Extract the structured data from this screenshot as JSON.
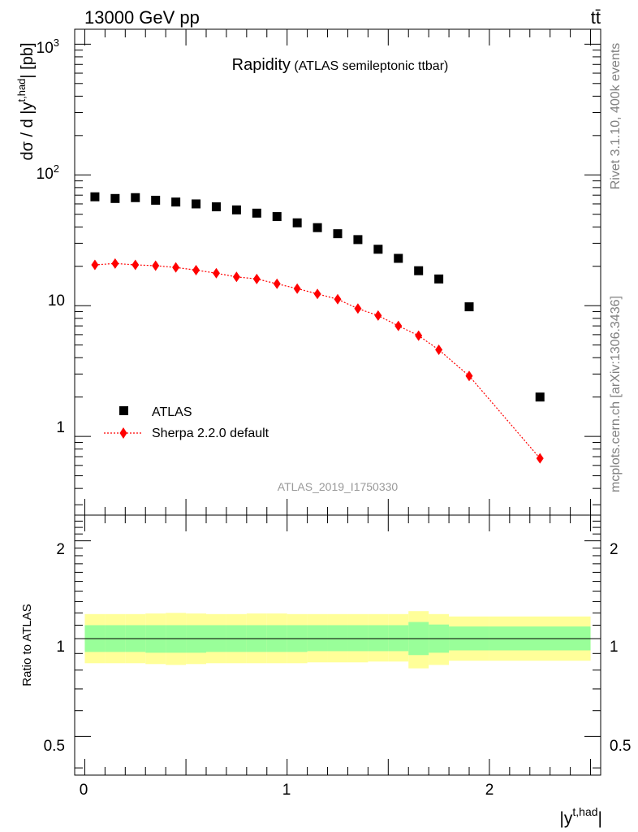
{
  "header": {
    "left": "13000 GeV pp",
    "right": "tt̄"
  },
  "side_labels": {
    "rivet": "Rivet 3.1.10,  400k events",
    "mcplots": "mcplots.cern.ch [arXiv:1306.3436]"
  },
  "main_plot": {
    "title_main": "Rapidity",
    "title_sub": "(ATLAS semileptonic ttbar)",
    "analysis_id": "ATLAS_2019_I1750330",
    "ylabel_prefix": "dσ / d |y",
    "ylabel_sup": "t,had",
    "ylabel_suffix": "| [pb]",
    "legend": {
      "atlas": "ATLAS",
      "sherpa": "Sherpa 2.2.0 default"
    },
    "ytick_labels": [
      {
        "base": "1",
        "exp": ""
      },
      {
        "base": "10",
        "exp": ""
      },
      {
        "base": "10",
        "exp": "2"
      },
      {
        "base": "10",
        "exp": "3"
      }
    ]
  },
  "ratio_plot": {
    "ylabel": "Ratio to ATLAS",
    "ytick_labels": [
      "0.5",
      "1",
      "2"
    ],
    "ytick_labels_right": [
      "0.5",
      "1",
      "2"
    ]
  },
  "xaxis": {
    "tick_labels": [
      "0",
      "1",
      "2"
    ],
    "label_base": "|y",
    "label_sup": "t,had",
    "label_end": "|"
  },
  "colors": {
    "data": "#000000",
    "mc": "#ff0000",
    "band_inner": "#99ff99",
    "band_outer": "#ffff99"
  },
  "chart_data": [
    {
      "type": "scatter",
      "title": "Rapidity (ATLAS semileptonic ttbar)",
      "xlabel": "|y^t,had|",
      "ylabel": "dσ / d |y^t,had| [pb]",
      "xlim": [
        -0.05,
        2.55
      ],
      "ylim": [
        0.25,
        1300
      ],
      "log_y": true,
      "legend_position": "lower-left",
      "series": [
        {
          "name": "ATLAS",
          "marker": "square",
          "x": [
            0.05,
            0.15,
            0.25,
            0.35,
            0.45,
            0.55,
            0.65,
            0.75,
            0.85,
            0.95,
            1.05,
            1.15,
            1.25,
            1.35,
            1.45,
            1.55,
            1.65,
            1.75,
            1.9,
            2.25
          ],
          "y": [
            68,
            66,
            67,
            64,
            62,
            60,
            57,
            54,
            51,
            48,
            43,
            39.5,
            35.5,
            32,
            27,
            23,
            18.5,
            16,
            9.8,
            2.0
          ]
        },
        {
          "name": "Sherpa 2.2.0 default",
          "marker": "diamond",
          "line": "dotted",
          "x": [
            0.05,
            0.15,
            0.25,
            0.35,
            0.45,
            0.55,
            0.65,
            0.75,
            0.85,
            0.95,
            1.05,
            1.15,
            1.25,
            1.35,
            1.45,
            1.55,
            1.65,
            1.75,
            1.9,
            2.25
          ],
          "y": [
            20.5,
            21,
            20.5,
            20.2,
            19.6,
            18.7,
            17.7,
            16.6,
            16,
            14.7,
            13.5,
            12.3,
            11.2,
            9.5,
            8.4,
            7.0,
            5.9,
            4.6,
            2.9,
            0.68
          ]
        }
      ]
    },
    {
      "type": "area",
      "xlabel": "|y^t,had|",
      "ylabel": "Ratio to ATLAS",
      "xlim": [
        -0.05,
        2.55
      ],
      "ylim": [
        0.38,
        2.4
      ],
      "log_y": true,
      "reference_line": 1,
      "bins": [
        [
          0,
          0.1
        ],
        [
          0.1,
          0.2
        ],
        [
          0.2,
          0.3
        ],
        [
          0.3,
          0.4
        ],
        [
          0.4,
          0.5
        ],
        [
          0.5,
          0.6
        ],
        [
          0.6,
          0.7
        ],
        [
          0.7,
          0.8
        ],
        [
          0.8,
          0.9
        ],
        [
          0.9,
          1.0
        ],
        [
          1.0,
          1.1
        ],
        [
          1.1,
          1.2
        ],
        [
          1.2,
          1.3
        ],
        [
          1.3,
          1.4
        ],
        [
          1.4,
          1.5
        ],
        [
          1.5,
          1.6
        ],
        [
          1.6,
          1.7
        ],
        [
          1.7,
          1.8
        ],
        [
          1.8,
          2.0
        ],
        [
          2.0,
          2.5
        ]
      ],
      "series": [
        {
          "name": "",
          "lo": [
            0.84,
            0.84,
            0.84,
            0.835,
            0.83,
            0.835,
            0.84,
            0.84,
            0.84,
            0.84,
            0.84,
            0.845,
            0.845,
            0.845,
            0.85,
            0.85,
            0.81,
            0.83,
            0.855,
            0.855
          ],
          "hi": [
            1.19,
            1.19,
            1.19,
            1.195,
            1.2,
            1.195,
            1.19,
            1.19,
            1.195,
            1.195,
            1.19,
            1.19,
            1.19,
            1.19,
            1.19,
            1.19,
            1.215,
            1.19,
            1.17,
            1.17
          ]
        },
        {
          "name": "",
          "lo": [
            0.91,
            0.91,
            0.91,
            0.905,
            0.905,
            0.905,
            0.91,
            0.91,
            0.91,
            0.91,
            0.91,
            0.915,
            0.915,
            0.915,
            0.915,
            0.915,
            0.89,
            0.905,
            0.92,
            0.92
          ],
          "hi": [
            1.1,
            1.1,
            1.1,
            1.1,
            1.1,
            1.1,
            1.1,
            1.1,
            1.1,
            1.1,
            1.1,
            1.1,
            1.1,
            1.1,
            1.1,
            1.1,
            1.125,
            1.105,
            1.09,
            1.09
          ]
        }
      ]
    }
  ]
}
